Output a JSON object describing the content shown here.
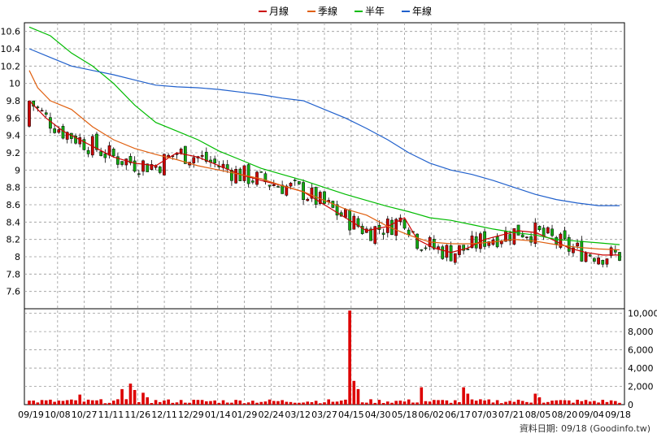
{
  "chart_data": {
    "type": "candlestick",
    "legend": [
      {
        "name": "月線",
        "color": "#cc0000"
      },
      {
        "name": "季線",
        "color": "#e06010"
      },
      {
        "name": "半年",
        "color": "#00bb00"
      },
      {
        "name": "年線",
        "color": "#2060cc"
      }
    ],
    "price_axis": {
      "ylim": [
        7.4,
        10.7
      ],
      "ticks": [
        "10.6",
        "10.4",
        "10.2",
        "10",
        "9.8",
        "9.6",
        "9.4",
        "9.2",
        "9",
        "8.8",
        "8.6",
        "8.4",
        "8.2",
        "8",
        "7.8",
        "7.6"
      ]
    },
    "volume_axis": {
      "ylim": [
        0,
        10500
      ],
      "ticks": [
        "10,000",
        "8,000",
        "6,000",
        "4,000",
        "2,000",
        "0"
      ]
    },
    "x_labels": [
      "09/19",
      "10/08",
      "10/27",
      "11/11",
      "11/26",
      "12/11",
      "12/29",
      "01/14",
      "01/29",
      "02/24",
      "03/12",
      "03/27",
      "04/15",
      "04/30",
      "05/18",
      "06/02",
      "06/17",
      "07/03",
      "07/21",
      "08/05",
      "08/20",
      "09/04",
      "09/18"
    ],
    "series": [
      {
        "name": "月線",
        "points": [
          [
            0,
            9.8
          ],
          [
            4,
            9.6
          ],
          [
            8,
            9.45
          ],
          [
            12,
            9.35
          ],
          [
            16,
            9.25
          ],
          [
            20,
            9.15
          ],
          [
            25,
            9.08
          ],
          [
            30,
            9.05
          ],
          [
            35,
            9.2
          ],
          [
            40,
            9.15
          ],
          [
            45,
            9.05
          ],
          [
            50,
            8.95
          ],
          [
            55,
            8.88
          ],
          [
            60,
            8.82
          ],
          [
            65,
            8.75
          ],
          [
            70,
            8.6
          ],
          [
            75,
            8.45
          ],
          [
            80,
            8.3
          ],
          [
            85,
            8.35
          ],
          [
            89,
            8.45
          ],
          [
            92,
            8.2
          ],
          [
            96,
            8.1
          ],
          [
            100,
            8.05
          ],
          [
            104,
            8.1
          ],
          [
            108,
            8.2
          ],
          [
            112,
            8.25
          ],
          [
            116,
            8.3
          ],
          [
            120,
            8.28
          ],
          [
            124,
            8.2
          ],
          [
            128,
            8.1
          ],
          [
            132,
            8.05
          ],
          [
            136,
            8.02
          ],
          [
            140,
            8.02
          ]
        ]
      },
      {
        "name": "季線",
        "points": [
          [
            0,
            10.15
          ],
          [
            2,
            9.95
          ],
          [
            5,
            9.8
          ],
          [
            10,
            9.7
          ],
          [
            15,
            9.5
          ],
          [
            20,
            9.35
          ],
          [
            25,
            9.25
          ],
          [
            30,
            9.18
          ],
          [
            35,
            9.12
          ],
          [
            40,
            9.05
          ],
          [
            45,
            9.0
          ],
          [
            50,
            8.95
          ],
          [
            55,
            8.9
          ],
          [
            60,
            8.82
          ],
          [
            65,
            8.75
          ],
          [
            70,
            8.65
          ],
          [
            75,
            8.55
          ],
          [
            80,
            8.48
          ],
          [
            85,
            8.35
          ],
          [
            90,
            8.25
          ],
          [
            95,
            8.17
          ],
          [
            100,
            8.15
          ],
          [
            105,
            8.15
          ],
          [
            110,
            8.17
          ],
          [
            115,
            8.2
          ],
          [
            120,
            8.18
          ],
          [
            125,
            8.14
          ],
          [
            130,
            8.11
          ],
          [
            135,
            8.09
          ],
          [
            140,
            8.08
          ]
        ]
      },
      {
        "name": "半年",
        "points": [
          [
            0,
            10.65
          ],
          [
            5,
            10.55
          ],
          [
            10,
            10.35
          ],
          [
            15,
            10.2
          ],
          [
            20,
            10.0
          ],
          [
            25,
            9.75
          ],
          [
            30,
            9.55
          ],
          [
            35,
            9.45
          ],
          [
            40,
            9.35
          ],
          [
            45,
            9.22
          ],
          [
            50,
            9.12
          ],
          [
            55,
            9.02
          ],
          [
            60,
            8.95
          ],
          [
            65,
            8.88
          ],
          [
            70,
            8.8
          ],
          [
            75,
            8.72
          ],
          [
            80,
            8.65
          ],
          [
            85,
            8.58
          ],
          [
            90,
            8.52
          ],
          [
            95,
            8.45
          ],
          [
            100,
            8.42
          ],
          [
            105,
            8.37
          ],
          [
            110,
            8.32
          ],
          [
            115,
            8.28
          ],
          [
            120,
            8.25
          ],
          [
            125,
            8.2
          ],
          [
            130,
            8.18
          ],
          [
            135,
            8.16
          ],
          [
            140,
            8.14
          ]
        ]
      },
      {
        "name": "年線",
        "points": [
          [
            0,
            10.4
          ],
          [
            5,
            10.3
          ],
          [
            10,
            10.2
          ],
          [
            15,
            10.15
          ],
          [
            20,
            10.1
          ],
          [
            25,
            10.04
          ],
          [
            30,
            9.98
          ],
          [
            35,
            9.96
          ],
          [
            40,
            9.95
          ],
          [
            45,
            9.93
          ],
          [
            50,
            9.9
          ],
          [
            55,
            9.87
          ],
          [
            60,
            9.83
          ],
          [
            65,
            9.8
          ],
          [
            70,
            9.7
          ],
          [
            75,
            9.6
          ],
          [
            80,
            9.48
          ],
          [
            85,
            9.35
          ],
          [
            90,
            9.2
          ],
          [
            95,
            9.08
          ],
          [
            100,
            9.0
          ],
          [
            105,
            8.95
          ],
          [
            110,
            8.88
          ],
          [
            115,
            8.8
          ],
          [
            120,
            8.72
          ],
          [
            125,
            8.66
          ],
          [
            130,
            8.62
          ],
          [
            135,
            8.59
          ],
          [
            140,
            8.59
          ]
        ]
      }
    ],
    "volume_spikes": [
      [
        12,
        1100
      ],
      [
        22,
        1700
      ],
      [
        24,
        2300
      ],
      [
        25,
        1600
      ],
      [
        27,
        1300
      ],
      [
        28,
        800
      ],
      [
        76,
        10300
      ],
      [
        77,
        2600
      ],
      [
        78,
        1700
      ],
      [
        93,
        1900
      ],
      [
        103,
        1900
      ],
      [
        104,
        1200
      ],
      [
        120,
        1200
      ],
      [
        121,
        800
      ]
    ],
    "source_note": "資料日期: 09/18  (Goodinfo.tw)"
  }
}
